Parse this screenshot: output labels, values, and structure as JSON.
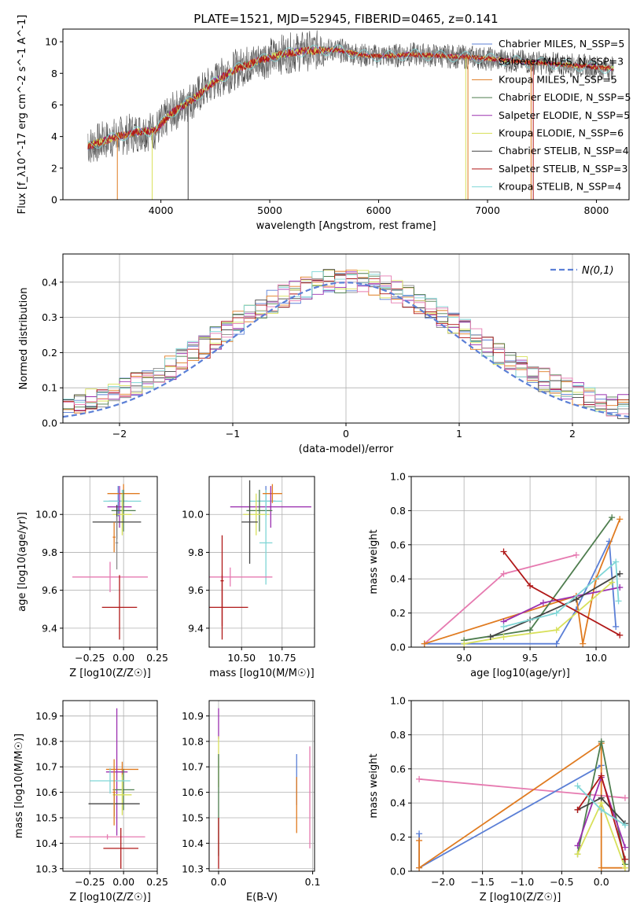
{
  "title": "PLATE=1521, MJD=52945, FIBERID=0465, z=0.141",
  "colors": {
    "chabrier_miles": "#5b7fd6",
    "salpeter_miles": "#8a8a8a",
    "kroupa_miles": "#e07b20",
    "chabrier_elodie": "#4e7d4e",
    "salpeter_elodie": "#9b30b0",
    "kroupa_elodie": "#d8e05a",
    "chabrier_stelib": "#444444",
    "salpeter_stelib": "#b01818",
    "kroupa_stelib": "#7fd6d6",
    "pink": "#e67ab0",
    "normal_curve": "#5b7fd6"
  },
  "chart_data": [
    {
      "id": "spectrum",
      "type": "line",
      "xlabel": "wavelength [Angstrom, rest frame]",
      "ylabel": "Flux [f_λ10^-17 erg cm^-2 s^-1 A^-1]",
      "xlim": [
        3100,
        8300
      ],
      "ylim": [
        0,
        10.8
      ],
      "xticks": [
        "4000",
        "5000",
        "6000",
        "7000",
        "8000"
      ],
      "yticks": [
        "0",
        "2",
        "4",
        "6",
        "8",
        "10"
      ],
      "legend": [
        {
          "label": "Chabrier MILES, N_SSP=5",
          "color": "chabrier_miles"
        },
        {
          "label": "Salpeter MILES, N_SSP=3",
          "color": "salpeter_miles"
        },
        {
          "label": "Kroupa MILES, N_SSP=5",
          "color": "kroupa_miles"
        },
        {
          "label": "Chabrier ELODIE, N_SSP=5",
          "color": "chabrier_elodie"
        },
        {
          "label": "Salpeter ELODIE, N_SSP=5",
          "color": "salpeter_elodie"
        },
        {
          "label": "Kroupa ELODIE, N_SSP=6",
          "color": "kroupa_elodie"
        },
        {
          "label": "Chabrier STELIB, N_SSP=4",
          "color": "chabrier_stelib"
        },
        {
          "label": "Salpeter STELIB, N_SSP=3",
          "color": "salpeter_stelib"
        },
        {
          "label": "Kroupa STELIB, N_SSP=4",
          "color": "kroupa_stelib"
        }
      ],
      "legend_position": "upper-right",
      "continuum": [
        [
          3330,
          3.4
        ],
        [
          3600,
          4.0
        ],
        [
          3800,
          4.3
        ],
        [
          3950,
          4.4
        ],
        [
          4100,
          5.5
        ],
        [
          4300,
          6.4
        ],
        [
          4500,
          7.5
        ],
        [
          4700,
          8.3
        ],
        [
          4900,
          8.8
        ],
        [
          5100,
          9.2
        ],
        [
          5300,
          9.4
        ],
        [
          5600,
          9.5
        ],
        [
          5900,
          9.1
        ],
        [
          6100,
          9.1
        ],
        [
          6300,
          9.2
        ],
        [
          6600,
          9.1
        ],
        [
          6900,
          9.0
        ],
        [
          7200,
          8.8
        ],
        [
          7600,
          8.6
        ],
        [
          8000,
          8.4
        ],
        [
          8160,
          8.3
        ]
      ]
    },
    {
      "id": "residuals",
      "type": "histogram",
      "xlabel": "(data-model)/error",
      "ylabel": "Normed distribution",
      "xlim": [
        -2.5,
        2.5
      ],
      "ylim": [
        0,
        0.48
      ],
      "xticks": [
        "−2",
        "−1",
        "0",
        "1",
        "2"
      ],
      "yticks": [
        "0.0",
        "0.1",
        "0.2",
        "0.3",
        "0.4"
      ],
      "grid": true,
      "legend": [
        {
          "label": "N(0,1)",
          "style": "dashed",
          "color": "normal_curve"
        }
      ],
      "legend_position": "upper-right",
      "bin_width": 0.1
    },
    {
      "id": "age_vs_Z",
      "type": "errorbar",
      "xlabel": "Z [log10(Z/Z☉)]",
      "ylabel": "age  [log10(age/yr)]",
      "xlim": [
        -0.45,
        0.25
      ],
      "ylim": [
        9.3,
        10.2
      ],
      "xticks": [
        "−0.25",
        "0.00",
        "0.25"
      ],
      "yticks": [
        "9.4",
        "9.6",
        "9.8",
        "10.0"
      ],
      "grid": true,
      "points": [
        {
          "x": -0.04,
          "xerr": 0.07,
          "y": 10.07,
          "yerr": 0.08,
          "color": "chabrier_miles"
        },
        {
          "x": -0.01,
          "xerr": 0.14,
          "y": 10.07,
          "yerr": 0.06,
          "color": "kroupa_stelib"
        },
        {
          "x": 0.0,
          "xerr": 0.12,
          "y": 10.11,
          "yerr": 0.05,
          "color": "kroupa_miles"
        },
        {
          "x": -0.03,
          "xerr": 0.09,
          "y": 10.04,
          "yerr": 0.11,
          "color": "salpeter_elodie"
        },
        {
          "x": 0.0,
          "xerr": 0.09,
          "y": 10.02,
          "yerr": 0.11,
          "color": "chabrier_elodie"
        },
        {
          "x": -0.01,
          "xerr": 0.07,
          "y": 10.0,
          "yerr": 0.11,
          "color": "kroupa_elodie"
        },
        {
          "x": -0.05,
          "xerr": 0.18,
          "y": 9.96,
          "yerr": 0.09,
          "color": "chabrier_stelib"
        },
        {
          "x": -0.07,
          "xerr": 0.01,
          "y": 9.88,
          "yerr": 0.08,
          "color": "kroupa_miles"
        },
        {
          "x": -0.05,
          "xerr": 0.01,
          "y": 9.85,
          "yerr": 0.14,
          "color": "salpeter_miles"
        },
        {
          "x": -0.1,
          "xerr": 0.28,
          "y": 9.67,
          "yerr": 0.08,
          "color": "pink"
        },
        {
          "x": -0.03,
          "xerr": 0.13,
          "y": 9.51,
          "yerr": 0.17,
          "color": "salpeter_stelib"
        }
      ]
    },
    {
      "id": "age_vs_mass",
      "type": "errorbar",
      "xlabel": "mass [log10(M/M☉)]",
      "ylabel": "",
      "xlim": [
        10.3,
        10.95
      ],
      "ylim": [
        9.3,
        10.2
      ],
      "xticks": [
        "10.50",
        "10.75"
      ],
      "yticks": [
        "9.4",
        "9.6",
        "9.8",
        "10.0"
      ],
      "grid": true,
      "points": [
        {
          "x": 10.65,
          "xerr": 0.06,
          "y": 10.07,
          "yerr": 0.08,
          "color": "chabrier_miles"
        },
        {
          "x": 10.65,
          "xerr": 0.1,
          "y": 10.07,
          "yerr": 0.06,
          "color": "kroupa_stelib"
        },
        {
          "x": 10.69,
          "xerr": 0.06,
          "y": 10.11,
          "yerr": 0.05,
          "color": "kroupa_miles"
        },
        {
          "x": 10.68,
          "xerr": 0.25,
          "y": 10.04,
          "yerr": 0.11,
          "color": "salpeter_elodie"
        },
        {
          "x": 10.61,
          "xerr": 0.08,
          "y": 10.02,
          "yerr": 0.11,
          "color": "chabrier_elodie"
        },
        {
          "x": 10.59,
          "xerr": 0.08,
          "y": 10.0,
          "yerr": 0.11,
          "color": "kroupa_elodie"
        },
        {
          "x": 10.55,
          "xerr": 0.05,
          "y": 9.96,
          "yerr": 0.22,
          "color": "chabrier_stelib"
        },
        {
          "x": 10.65,
          "xerr": 0.04,
          "y": 9.85,
          "yerr": 0.22,
          "color": "kroupa_stelib"
        },
        {
          "x": 10.43,
          "xerr": 0.26,
          "y": 9.67,
          "yerr": 0.05,
          "color": "pink"
        },
        {
          "x": 10.38,
          "xerr": 0.16,
          "y": 9.51,
          "yerr": 0.17,
          "color": "salpeter_stelib"
        },
        {
          "x": 10.38,
          "xerr": 0.01,
          "y": 9.65,
          "yerr": 0.24,
          "color": "salpeter_stelib"
        }
      ]
    },
    {
      "id": "weight_vs_age",
      "type": "line",
      "xlabel": "age  [log10(age/yr)]",
      "ylabel": "mass weight",
      "xlim": [
        8.6,
        10.25
      ],
      "ylim": [
        0,
        1.0
      ],
      "xticks": [
        "9.0",
        "9.5",
        "10.0"
      ],
      "yticks": [
        "0.0",
        "0.2",
        "0.4",
        "0.6",
        "0.8",
        "1.0"
      ],
      "grid": true,
      "series": [
        {
          "color": "pink",
          "x": [
            8.7,
            9.3,
            9.85
          ],
          "y": [
            0.02,
            0.43,
            0.54
          ]
        },
        {
          "color": "chabrier_miles",
          "x": [
            8.7,
            9.7,
            9.85,
            10.1,
            10.15
          ],
          "y": [
            0.02,
            0.02,
            0.22,
            0.62,
            0.12
          ]
        },
        {
          "color": "kroupa_miles",
          "x": [
            8.7,
            9.85,
            9.9,
            10.0,
            10.18
          ],
          "y": [
            0.02,
            0.3,
            0.02,
            0.4,
            0.75
          ]
        },
        {
          "color": "chabrier_elodie",
          "x": [
            9.0,
            9.5,
            10.12
          ],
          "y": [
            0.04,
            0.1,
            0.76
          ]
        },
        {
          "color": "salpeter_elodie",
          "x": [
            9.3,
            9.6,
            10.18
          ],
          "y": [
            0.15,
            0.26,
            0.35
          ]
        },
        {
          "color": "kroupa_elodie",
          "x": [
            9.0,
            9.3,
            9.7,
            10.12
          ],
          "y": [
            0.02,
            0.06,
            0.1,
            0.38
          ]
        },
        {
          "color": "chabrier_stelib",
          "x": [
            9.2,
            9.5,
            9.85,
            10.18
          ],
          "y": [
            0.06,
            0.16,
            0.28,
            0.43
          ]
        },
        {
          "color": "salpeter_stelib",
          "x": [
            9.3,
            9.5,
            10.18
          ],
          "y": [
            0.56,
            0.36,
            0.07
          ]
        },
        {
          "color": "kroupa_stelib",
          "x": [
            9.3,
            9.7,
            10.15,
            10.17
          ],
          "y": [
            0.12,
            0.2,
            0.5,
            0.27
          ]
        }
      ]
    },
    {
      "id": "mass_vs_Z",
      "type": "errorbar",
      "xlabel": "Z [log10(Z/Z☉)]",
      "ylabel": "mass [log10(M/M☉)]",
      "xlim": [
        -0.45,
        0.25
      ],
      "ylim": [
        10.29,
        10.96
      ],
      "xticks": [
        "−0.25",
        "0.00",
        "0.25"
      ],
      "yticks": [
        "10.3",
        "10.4",
        "10.5",
        "10.6",
        "10.7",
        "10.8",
        "10.9"
      ],
      "grid": true,
      "points": [
        {
          "x": -0.01,
          "xerr": 0.12,
          "y": 10.69,
          "yerr": 0.03,
          "color": "kroupa_miles"
        },
        {
          "x": -0.05,
          "xerr": 0.08,
          "y": 10.68,
          "yerr": 0.25,
          "color": "salpeter_elodie"
        },
        {
          "x": 0.0,
          "xerr": 0.08,
          "y": 10.61,
          "yerr": 0.08,
          "color": "chabrier_elodie"
        },
        {
          "x": -0.01,
          "xerr": 0.07,
          "y": 10.59,
          "yerr": 0.08,
          "color": "kroupa_elodie"
        },
        {
          "x": -0.1,
          "xerr": 0.15,
          "y": 10.645,
          "yerr": 0.05,
          "color": "kroupa_stelib"
        },
        {
          "x": -0.07,
          "xerr": 0.19,
          "y": 10.555,
          "yerr": 0.05,
          "color": "chabrier_stelib"
        },
        {
          "x": -0.07,
          "xerr": 0.01,
          "y": 10.6,
          "yerr": 0.13,
          "color": "kroupa_miles"
        },
        {
          "x": -0.12,
          "xerr": 0.28,
          "y": 10.425,
          "yerr": 0.01,
          "color": "pink"
        },
        {
          "x": -0.02,
          "xerr": 0.13,
          "y": 10.38,
          "yerr": 0.08,
          "color": "salpeter_stelib"
        }
      ]
    },
    {
      "id": "mass_vs_ebv",
      "type": "errorbar",
      "xlabel": "E(B-V)",
      "ylabel": "",
      "xlim": [
        -0.01,
        0.102
      ],
      "ylim": [
        10.29,
        10.96
      ],
      "xticks": [
        "0.0",
        "0.1"
      ],
      "yticks": [
        "10.3",
        "10.4",
        "10.5",
        "10.6",
        "10.7",
        "10.8",
        "10.9"
      ],
      "grid": true,
      "points": [
        {
          "x": 0.0,
          "xerr": 0.0,
          "y": 10.87,
          "yerr": 0.06,
          "color": "salpeter_elodie"
        },
        {
          "x": 0.0,
          "xerr": 0.0,
          "y": 10.72,
          "yerr": 0.1,
          "color": "kroupa_elodie"
        },
        {
          "x": 0.0,
          "xerr": 0.0,
          "y": 10.55,
          "yerr": 0.2,
          "color": "chabrier_elodie"
        },
        {
          "x": 0.0,
          "xerr": 0.0,
          "y": 10.4,
          "yerr": 0.1,
          "color": "salpeter_stelib"
        },
        {
          "x": 0.083,
          "xerr": 0.0,
          "y": 10.65,
          "yerr": 0.1,
          "color": "chabrier_miles"
        },
        {
          "x": 0.083,
          "xerr": 0.0,
          "y": 10.55,
          "yerr": 0.11,
          "color": "kroupa_miles"
        },
        {
          "x": 0.097,
          "xerr": 0.0,
          "y": 10.58,
          "yerr": 0.2,
          "color": "pink"
        }
      ]
    },
    {
      "id": "weight_vs_Z",
      "type": "line",
      "xlabel": "Z [log10(Z/Z☉)]",
      "ylabel": "mass weight",
      "xlim": [
        -2.4,
        0.35
      ],
      "ylim": [
        0,
        1.0
      ],
      "xticks": [
        "−2.0",
        "−1.5",
        "−1.0",
        "−0.5",
        "0.0"
      ],
      "yticks": [
        "0.0",
        "0.2",
        "0.4",
        "0.6",
        "0.8",
        "1.0"
      ],
      "grid": true,
      "series": [
        {
          "color": "pink",
          "x": [
            -2.3,
            0.3
          ],
          "y": [
            0.54,
            0.43
          ]
        },
        {
          "color": "chabrier_miles",
          "x": [
            -2.3,
            -2.3,
            0.0
          ],
          "y": [
            0.22,
            0.02,
            0.62
          ]
        },
        {
          "color": "kroupa_miles",
          "x": [
            -2.3,
            -2.3,
            0.0,
            0.0,
            0.3
          ],
          "y": [
            0.18,
            0.02,
            0.75,
            0.02,
            0.02
          ]
        },
        {
          "color": "chabrier_elodie",
          "x": [
            -0.3,
            0.0,
            0.3
          ],
          "y": [
            0.1,
            0.76,
            0.04
          ]
        },
        {
          "color": "salpeter_elodie",
          "x": [
            -0.3,
            0.0,
            0.3
          ],
          "y": [
            0.15,
            0.55,
            0.14
          ]
        },
        {
          "color": "kroupa_elodie",
          "x": [
            -0.3,
            0.0,
            0.3
          ],
          "y": [
            0.1,
            0.4,
            0.02
          ]
        },
        {
          "color": "chabrier_stelib",
          "x": [
            -0.3,
            0.0,
            0.3
          ],
          "y": [
            0.36,
            0.43,
            0.28
          ]
        },
        {
          "color": "salpeter_stelib",
          "x": [
            -0.3,
            0.0,
            0.3
          ],
          "y": [
            0.36,
            0.56,
            0.07
          ]
        },
        {
          "color": "kroupa_stelib",
          "x": [
            -0.3,
            0.0,
            0.3
          ],
          "y": [
            0.5,
            0.36,
            0.27
          ]
        }
      ]
    }
  ]
}
